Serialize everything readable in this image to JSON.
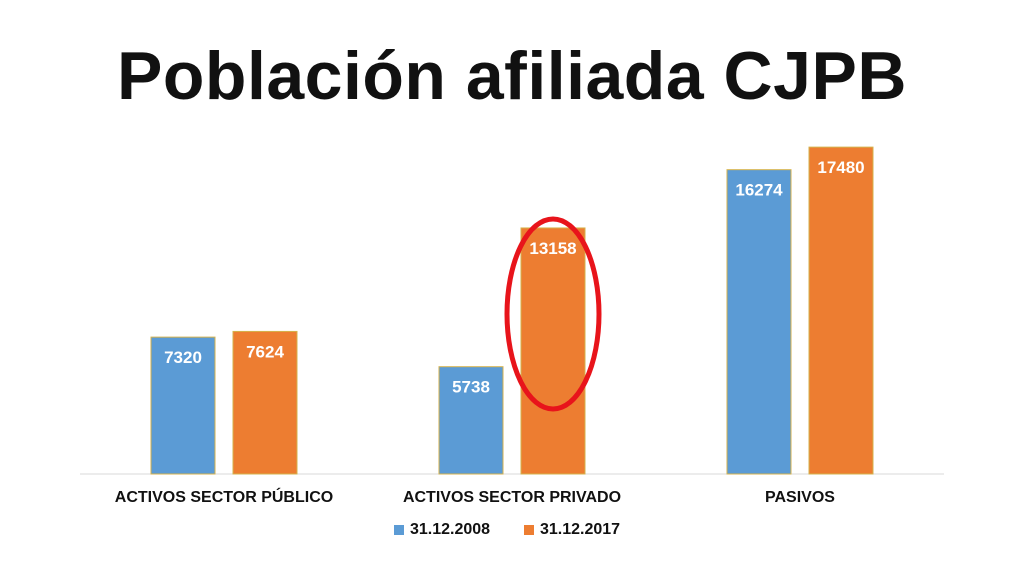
{
  "slide": {
    "title": "Población afiliada CJPB"
  },
  "chart_data": {
    "type": "bar",
    "title": "",
    "xlabel": "",
    "ylabel": "",
    "categories": [
      "ACTIVOS SECTOR PÚBLICO",
      "ACTIVOS SECTOR PRIVADO",
      "PASIVOS"
    ],
    "series": [
      {
        "name": "31.12.2008",
        "color": "#5b9bd5",
        "values": [
          7320,
          5738,
          16274
        ]
      },
      {
        "name": "31.12.2017",
        "color": "#ed7d31",
        "values": [
          7624,
          13158,
          17480
        ]
      }
    ],
    "ylim": [
      0,
      20000
    ],
    "grid": false,
    "legend": "bottom",
    "data_labels": true,
    "annotation": {
      "shape": "ellipse",
      "color": "#e8141b",
      "highlight_category": "ACTIVOS SECTOR PRIVADO",
      "highlight_series": "31.12.2017"
    }
  }
}
